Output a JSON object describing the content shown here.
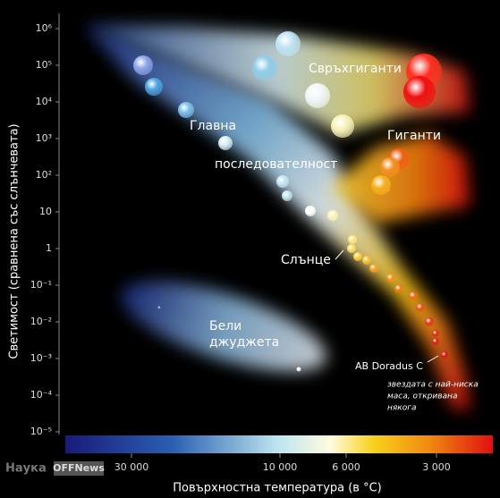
{
  "axes": {
    "y_label": "Светимост (сравнена със слънчевата)",
    "x_label": "Повърхностна температура (в °C)",
    "y_ticks": [
      "10⁶",
      "10⁵",
      "10⁴",
      "10³",
      "10²",
      "10",
      "1",
      "10⁻¹",
      "10⁻²",
      "10⁻³",
      "10⁻⁴",
      "10⁻⁵"
    ],
    "x_ticks": [
      "30 000",
      "10 000",
      "6 000",
      "3 000"
    ]
  },
  "regions": {
    "supergiants": "Свръхгиганти",
    "giants": "Гиганти",
    "main_sequence": [
      "Главна",
      "последователност"
    ],
    "white_dwarfs": [
      "Бели",
      "джуджета"
    ],
    "sun": "Слънце"
  },
  "annotation": {
    "star": "AB Doradus C",
    "note": [
      "звездата с най-ниска",
      "маса, откривана",
      "някога"
    ]
  },
  "watermark": {
    "brand": "Наука",
    "site": "OFFNews"
  }
}
